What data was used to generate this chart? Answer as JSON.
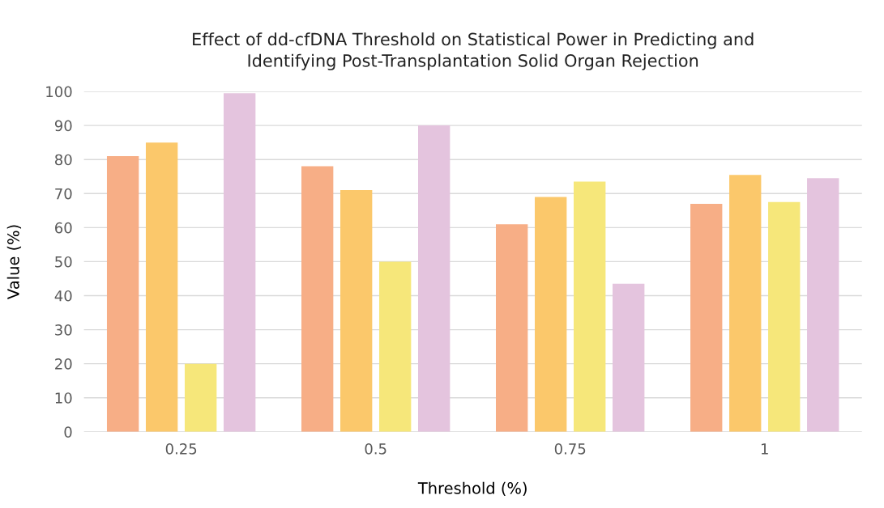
{
  "chart_data": {
    "type": "bar",
    "title": "Effect of dd-cfDNA Threshold on Statistical Power in Predicting and\nIdentifying Post-Transplantation Solid Organ Rejection",
    "xlabel": "Threshold (%)",
    "ylabel": "Value (%)",
    "categories": [
      "0.25",
      "0.5",
      "0.75",
      "1"
    ],
    "series": [
      {
        "color": "#f7ae86",
        "values": [
          81,
          78,
          61,
          67
        ]
      },
      {
        "color": "#fbc86b",
        "values": [
          85,
          71,
          69,
          75.5
        ]
      },
      {
        "color": "#f6e77a",
        "values": [
          20,
          50,
          73.5,
          67.5
        ]
      },
      {
        "color": "#e4c4de",
        "values": [
          99.5,
          90,
          43.5,
          74.5
        ]
      }
    ],
    "ylim": [
      0,
      100
    ],
    "yticks": [
      0,
      10,
      20,
      30,
      40,
      50,
      60,
      70,
      80,
      90,
      100
    ],
    "grid": "y"
  }
}
